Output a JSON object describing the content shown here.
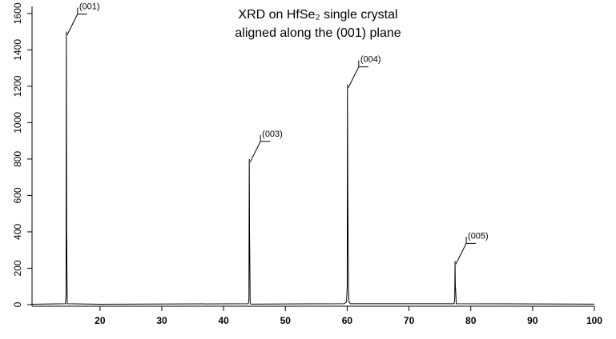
{
  "chart_data": {
    "type": "line",
    "title": [
      "XRD on HfSe₂ single crystal",
      "aligned along the (001) plane"
    ],
    "x": [
      9,
      14.4,
      14.5,
      14.55,
      14.6,
      14.7,
      20,
      44.0,
      44.1,
      44.15,
      44.2,
      44.3,
      44.4,
      59.5,
      59.9,
      60.0,
      60.05,
      60.1,
      60.2,
      60.3,
      60.5,
      77.3,
      77.4,
      77.45,
      77.5,
      77.55,
      77.65,
      100
    ],
    "values": [
      2,
      5,
      50,
      1500,
      400,
      5,
      2,
      5,
      30,
      800,
      400,
      10,
      3,
      5,
      15,
      100,
      1210,
      620,
      80,
      15,
      5,
      5,
      30,
      240,
      100,
      80,
      5,
      3
    ],
    "color": "#000000",
    "xlim": [
      9,
      100
    ],
    "xticks": [
      20,
      30,
      40,
      50,
      60,
      70,
      80,
      90,
      100
    ],
    "ylim": [
      0,
      1630
    ],
    "yticks": [
      0,
      200,
      400,
      600,
      800,
      1000,
      1200,
      1400,
      1600
    ],
    "annotations": [
      {
        "text": "(001)",
        "x": 14.55,
        "y": 1500
      },
      {
        "text": "(003)",
        "x": 44.15,
        "y": 800
      },
      {
        "text": "(004)",
        "x": 60.05,
        "y": 1210
      },
      {
        "text": "(005)",
        "x": 77.45,
        "y": 240
      }
    ]
  }
}
